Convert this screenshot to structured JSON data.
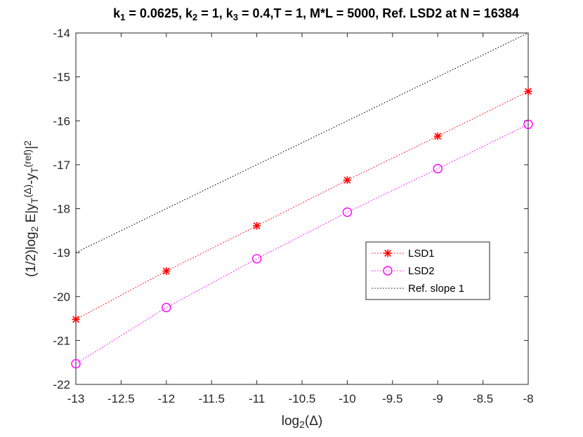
{
  "chart_data": {
    "type": "line",
    "title": "k1 = 0.0625, k2 = 1, k3 = 0.4,T = 1, M*L  = 5000, Ref. LSD2 at N = 16384",
    "title_parts": [
      {
        "text": "k",
        "sub": false
      },
      {
        "text": "1",
        "sub": true
      },
      {
        "text": " = 0.0625, k",
        "sub": false
      },
      {
        "text": "2",
        "sub": true
      },
      {
        "text": " = 1, k",
        "sub": false
      },
      {
        "text": "3",
        "sub": true
      },
      {
        "text": " = 0.4,T = 1, M*L  = 5000, Ref. LSD2 at N = 16384",
        "sub": false
      }
    ],
    "xlabel": "log2(Δ)",
    "xlabel_parts": [
      {
        "text": "log",
        "sub": false
      },
      {
        "text": "2",
        "sub": true
      },
      {
        "text": "(Δ)",
        "sub": false
      }
    ],
    "ylabel": "(1/2)log2 E|yT(Δ)-yT(ref)|2",
    "ylabel_parts": [
      {
        "text": "(1/2)log",
        "shift": "none"
      },
      {
        "text": "2",
        "shift": "sub"
      },
      {
        "text": " E|y",
        "shift": "none"
      },
      {
        "text": "T",
        "shift": "sub"
      },
      {
        "text": "(Δ)",
        "shift": "sup"
      },
      {
        "text": "-y",
        "shift": "none"
      },
      {
        "text": "T",
        "shift": "sub"
      },
      {
        "text": "(ref)",
        "shift": "sup"
      },
      {
        "text": "|",
        "shift": "none"
      },
      {
        "text": "2",
        "shift": "sup"
      }
    ],
    "xlim": [
      -13,
      -8
    ],
    "ylim": [
      -22,
      -14
    ],
    "xticks": [
      -13,
      -12.5,
      -12,
      -11.5,
      -11,
      -10.5,
      -10,
      -9.5,
      -9,
      -8.5,
      -8
    ],
    "xtick_labels": [
      "-13",
      "-12.5",
      "-12",
      "-11.5",
      "-11",
      "-10.5",
      "-10",
      "-9.5",
      "-9",
      "-8.5",
      "-8"
    ],
    "yticks": [
      -22,
      -21,
      -20,
      -19,
      -18,
      -17,
      -16,
      -15,
      -14
    ],
    "ytick_labels": [
      "-22",
      "-21",
      "-20",
      "-19",
      "-18",
      "-17",
      "-16",
      "-15",
      "-14"
    ],
    "grid": false,
    "legend_position": "center-right",
    "series": [
      {
        "name": "LSD1",
        "color": "#ff0000",
        "marker": "asterisk",
        "line": "dotted",
        "x": [
          -13,
          -12,
          -11,
          -10,
          -9,
          -8
        ],
        "y": [
          -20.52,
          -19.42,
          -18.39,
          -17.35,
          -16.35,
          -15.33
        ]
      },
      {
        "name": "LSD2",
        "color": "#ff00ff",
        "marker": "circle",
        "line": "dotted",
        "x": [
          -13,
          -12,
          -11,
          -10,
          -9,
          -8
        ],
        "y": [
          -21.53,
          -20.25,
          -19.14,
          -18.08,
          -17.09,
          -16.08
        ]
      },
      {
        "name": "Ref. slope 1",
        "color": "#000000",
        "marker": "none",
        "line": "dotted",
        "x": [
          -13,
          -8
        ],
        "y": [
          -19.0,
          -14.0
        ]
      }
    ]
  }
}
